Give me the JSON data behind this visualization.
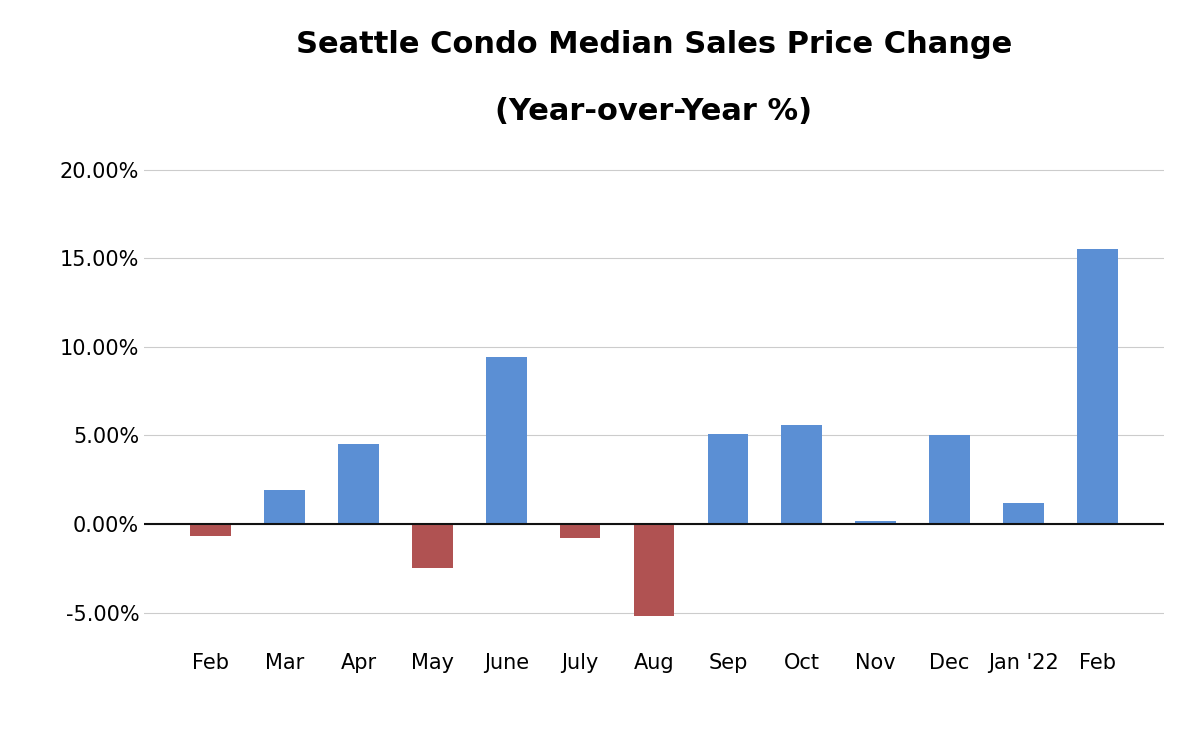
{
  "title_line1": "Seattle Condo Median Sales Price Change",
  "title_line2": "(Year-over-Year %)",
  "categories": [
    "Feb",
    "Mar",
    "Apr",
    "May",
    "June",
    "July",
    "Aug",
    "Sep",
    "Oct",
    "Nov",
    "Dec",
    "Jan '22",
    "Feb"
  ],
  "values": [
    -0.007,
    0.019,
    0.045,
    -0.025,
    0.094,
    -0.008,
    -0.052,
    0.051,
    0.056,
    0.002,
    0.05,
    0.012,
    0.155
  ],
  "bar_color_positive": "#5B8FD4",
  "bar_color_negative": "#B05252",
  "ylim_min": -0.07,
  "ylim_max": 0.22,
  "yticks": [
    -0.05,
    0.0,
    0.05,
    0.1,
    0.15,
    0.2
  ],
  "background_color": "#ffffff",
  "grid_color": "#cccccc",
  "title_fontsize": 22,
  "tick_fontsize": 15,
  "zero_line_color": "#111111",
  "bar_width": 0.55
}
